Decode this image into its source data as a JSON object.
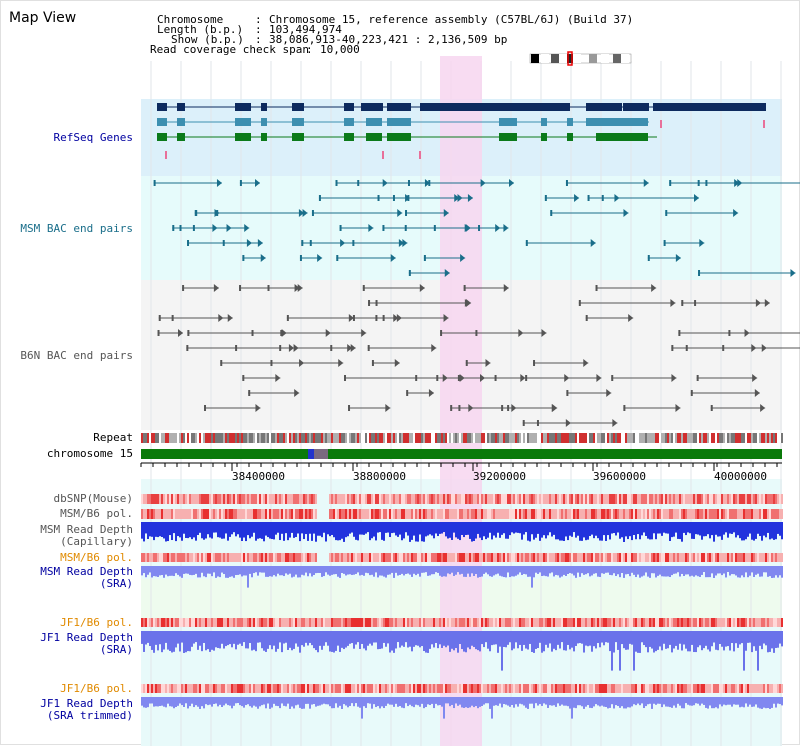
{
  "view_title": "Map View",
  "header": {
    "chromosome_key": "Chromosome",
    "chromosome_value": "Chromosome 15, reference assembly (C57BL/6J) (Build 37)",
    "length_key": "Length (b.p.)",
    "length_value": "103,494,974",
    "show_key": "Show (b.p.)",
    "show_value": "38,086,913-40,223,421 : 2,136,509 bp",
    "coverage_key": "Read coverage check span",
    "coverage_value": "10,000"
  },
  "tracks": {
    "refseq": "RefSeq Genes",
    "msm_bac": "MSM BAC end pairs",
    "b6n_bac": "B6N BAC end pairs",
    "repeat": "Repeat",
    "chromosome": "chromosome 15",
    "dbsnp": "dbSNP(Mouse)",
    "msm_b6_pol": "MSM/B6 pol.",
    "msm_read_depth_cap_1": "MSM Read Depth",
    "msm_read_depth_cap_2": "(Capillary)",
    "msm_b6_pol_2": "MSM/B6 pol.",
    "msm_read_depth_sra_1": "MSM Read Depth",
    "msm_read_depth_sra_2": "(SRA)",
    "jf1_b6_pol": "JF1/B6 pol.",
    "jf1_read_depth_sra_1": "JF1 Read Depth",
    "jf1_read_depth_sra_2": "(SRA)",
    "jf1_b6_pol_2": "JF1/B6 pol.",
    "jf1_read_depth_trim_1": "JF1 Read Depth",
    "jf1_read_depth_trim_2": "(SRA trimmed)"
  },
  "axis": {
    "ticks": [
      "38400000",
      "38800000",
      "39200000",
      "39600000",
      "40000000"
    ]
  },
  "colors": {
    "refseq_bg": "#dcf0fa",
    "msm_bg": "#e6fbfb",
    "b6n_bg": "#f4f4f4",
    "highlight": "#f7d6f0",
    "chrom_green": "#0a7a0a",
    "gene_navy": "#0d2a5e",
    "gene_teal": "#3d8fb0",
    "gene_green": "#0b7a1a",
    "depth_blue": "#2233dd",
    "depth_light": "#7b83f0",
    "pol_red": "#e83030"
  }
}
